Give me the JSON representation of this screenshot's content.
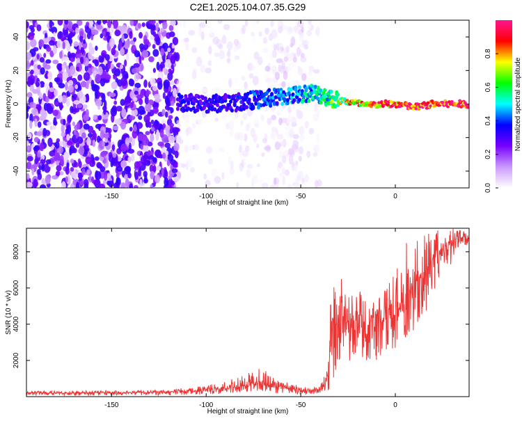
{
  "title": "C2E1.2025.104.07.35.G29",
  "chart_data": [
    {
      "type": "heatmap",
      "xlabel": "Height of straight line (km)",
      "ylabel": "Frequency (Hz)",
      "xlim": [
        -195,
        39
      ],
      "ylim": [
        -50,
        50
      ],
      "x_ticks": [
        -150,
        -100,
        -50,
        0
      ],
      "y_ticks": [
        -40,
        -20,
        0,
        20,
        40
      ],
      "colorbar": {
        "label": "Normalized spectral amplitude",
        "range": [
          0,
          1
        ],
        "ticks": [
          0.0,
          0.2,
          0.4,
          0.6,
          0.8
        ],
        "colors": [
          "#ffffff",
          "#cc99ff",
          "#7700ff",
          "#0000ff",
          "#00ffff",
          "#00ff00",
          "#ffff00",
          "#ff0000",
          "#ff1493"
        ]
      },
      "signal_band": [
        {
          "x": -115,
          "y": 1,
          "amp": 0.3
        },
        {
          "x": -100,
          "y": 0,
          "amp": 0.32
        },
        {
          "x": -85,
          "y": 1,
          "amp": 0.33
        },
        {
          "x": -70,
          "y": 3,
          "amp": 0.38
        },
        {
          "x": -55,
          "y": 5,
          "amp": 0.42
        },
        {
          "x": -45,
          "y": 7,
          "amp": 0.48
        },
        {
          "x": -38,
          "y": 5,
          "amp": 0.5
        },
        {
          "x": -30,
          "y": 2,
          "amp": 0.65
        },
        {
          "x": -22,
          "y": 1,
          "amp": 0.75
        },
        {
          "x": -15,
          "y": -1,
          "amp": 0.8
        },
        {
          "x": -8,
          "y": 0,
          "amp": 0.85
        },
        {
          "x": 0,
          "y": 0,
          "amp": 0.88
        },
        {
          "x": 10,
          "y": -2,
          "amp": 0.9
        },
        {
          "x": 20,
          "y": 0,
          "amp": 0.95
        },
        {
          "x": 39,
          "y": 0,
          "amp": 0.97
        }
      ],
      "noise_regions": [
        {
          "x_range": [
            -195,
            -115
          ],
          "y_range": [
            -50,
            50
          ],
          "amp": 0.25
        },
        {
          "x_range": [
            -115,
            -40
          ],
          "y_range": [
            -50,
            50
          ],
          "amp": 0.05
        },
        {
          "x_range": [
            -68,
            -48
          ],
          "y_range": [
            -50,
            45
          ],
          "amp": 0.08
        }
      ]
    },
    {
      "type": "line",
      "xlabel": "Height of straight line (km)",
      "ylabel": "SNR (10 * v/v)",
      "xlim": [
        -195,
        39
      ],
      "ylim": [
        0,
        9300
      ],
      "x_ticks": [
        -150,
        -100,
        -50,
        0
      ],
      "y_ticks": [
        2000,
        4000,
        6000,
        8000
      ],
      "color": "#ee3333",
      "series": [
        {
          "x": [
            -195,
            -180,
            -160,
            -140,
            -120,
            -110,
            -100,
            -90,
            -80,
            -75,
            -70,
            -65,
            -60,
            -55,
            -50,
            -45,
            -40,
            -37,
            -35,
            -32,
            -30,
            -27,
            -25,
            -20,
            -15,
            -10,
            -5,
            0,
            5,
            10,
            15,
            20,
            25,
            30,
            35,
            39
          ],
          "mean": [
            200,
            200,
            220,
            230,
            250,
            300,
            350,
            450,
            600,
            750,
            700,
            650,
            550,
            450,
            350,
            320,
            350,
            700,
            2200,
            3200,
            4000,
            4300,
            3800,
            3800,
            3700,
            3900,
            4300,
            4500,
            5500,
            6200,
            6800,
            7600,
            8100,
            8600,
            8800,
            8700
          ],
          "max": [
            300,
            320,
            330,
            340,
            380,
            500,
            600,
            900,
            1200,
            1400,
            1800,
            1200,
            900,
            700,
            600,
            500,
            600,
            1500,
            4500,
            7000,
            7400,
            6500,
            5500,
            6000,
            5300,
            5600,
            6200,
            6800,
            8500,
            8700,
            8900,
            9200,
            9200,
            9300,
            9200,
            9000
          ],
          "min": [
            50,
            50,
            60,
            70,
            80,
            100,
            100,
            150,
            200,
            200,
            250,
            200,
            150,
            150,
            100,
            100,
            150,
            300,
            300,
            900,
            1000,
            1700,
            1500,
            1800,
            1900,
            2000,
            2200,
            2500,
            3200,
            3700,
            4400,
            5300,
            6600,
            7400,
            8300,
            8400
          ]
        }
      ]
    }
  ]
}
